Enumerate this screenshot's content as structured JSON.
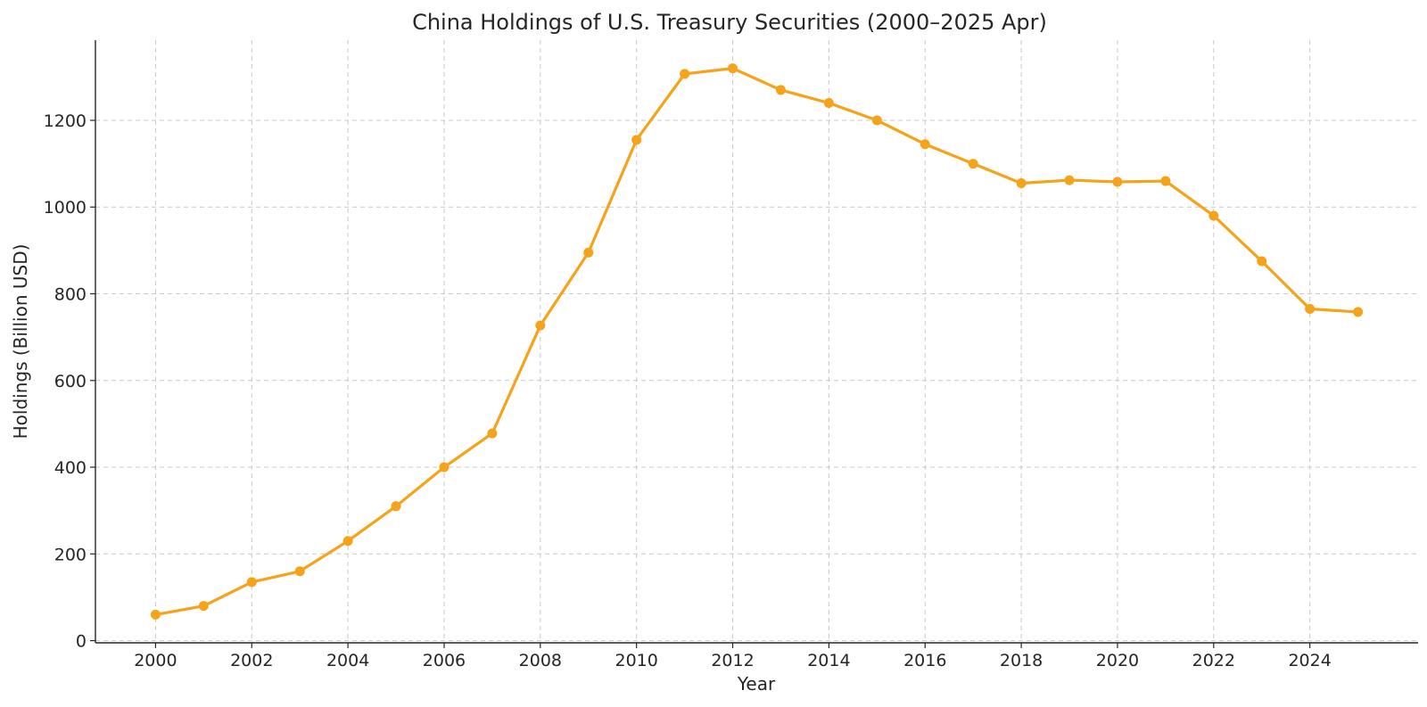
{
  "chart_data": {
    "type": "line",
    "title": "China Holdings of U.S. Treasury Securities (2000–2025 Apr)",
    "xlabel": "Year",
    "ylabel": "Holdings (Billion USD)",
    "xlim": [
      1998.75,
      2026.25
    ],
    "ylim": [
      -5,
      1385
    ],
    "x_ticks": [
      2000,
      2002,
      2004,
      2006,
      2008,
      2010,
      2012,
      2014,
      2016,
      2018,
      2020,
      2022,
      2024
    ],
    "y_ticks": [
      0,
      200,
      400,
      600,
      800,
      1000,
      1200
    ],
    "grid": true,
    "color": "#f5a31a",
    "series": [
      {
        "x": [
          2000,
          2001,
          2002,
          2003,
          2004,
          2005,
          2006,
          2007,
          2008,
          2009,
          2010,
          2011,
          2012,
          2013,
          2014,
          2015,
          2016,
          2017,
          2018,
          2019,
          2020,
          2021,
          2022,
          2023,
          2024,
          2025
        ],
        "values": [
          60,
          80,
          135,
          160,
          230,
          310,
          400,
          478,
          727,
          895,
          1155,
          1307,
          1320,
          1270,
          1240,
          1200,
          1145,
          1100,
          1055,
          1062,
          1058,
          1060,
          980,
          875,
          765,
          758
        ]
      }
    ]
  }
}
